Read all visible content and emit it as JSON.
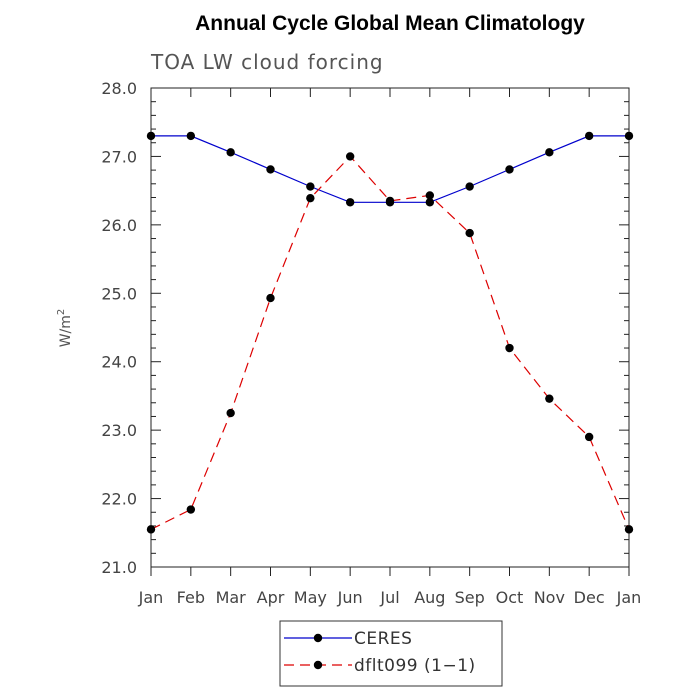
{
  "chart_data": {
    "type": "line",
    "title": "Annual Cycle Global Mean Climatology",
    "subtitle": "TOA LW cloud forcing",
    "ylabel": "W/m",
    "ylabel_sup": "2",
    "ylim": [
      21.0,
      28.0
    ],
    "yticks": [
      "21.0",
      "22.0",
      "23.0",
      "24.0",
      "25.0",
      "26.0",
      "27.0",
      "28.0"
    ],
    "categories": [
      "Jan",
      "Feb",
      "Mar",
      "Apr",
      "May",
      "Jun",
      "Jul",
      "Aug",
      "Sep",
      "Oct",
      "Nov",
      "Dec",
      "Jan"
    ],
    "series": [
      {
        "name": "CERES",
        "color": "#0000cc",
        "style": "solid",
        "values": [
          27.3,
          27.3,
          27.06,
          26.81,
          26.56,
          26.33,
          26.33,
          26.33,
          26.56,
          26.81,
          27.06,
          27.3,
          27.3
        ]
      },
      {
        "name": "dflt099 (1−1)",
        "color": "#dd0000",
        "style": "dashed",
        "values": [
          21.55,
          21.84,
          23.25,
          24.93,
          26.39,
          27.0,
          26.35,
          26.43,
          25.88,
          24.2,
          23.46,
          22.9,
          21.55
        ]
      }
    ],
    "grid": false,
    "legend_position": "bottom-center"
  }
}
